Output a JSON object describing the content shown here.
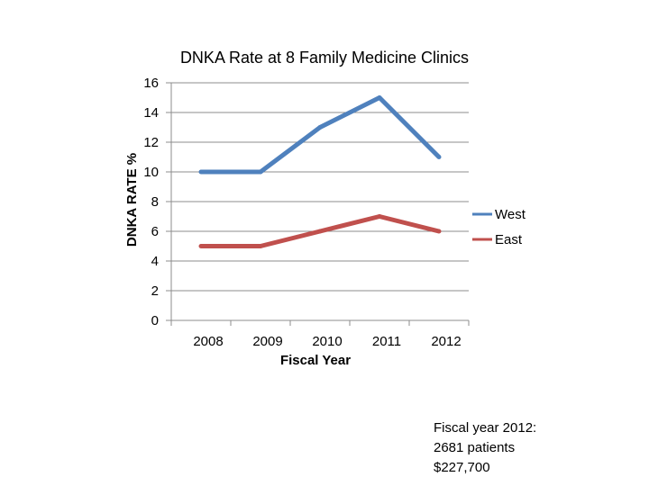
{
  "chart_data": {
    "type": "line",
    "title": "DNKA Rate at 8 Family Medicine  Clinics",
    "xlabel": "Fiscal Year",
    "ylabel": "DNKA  RATE %",
    "categories": [
      "2008",
      "2009",
      "2010",
      "2011",
      "2012"
    ],
    "ylim": [
      0,
      16
    ],
    "yticks": [
      0,
      2,
      4,
      6,
      8,
      10,
      12,
      14,
      16
    ],
    "grid": true,
    "legend_position": "right",
    "series": [
      {
        "name": "West",
        "color": "#4F81BD",
        "values": [
          10,
          10,
          13,
          15,
          11
        ]
      },
      {
        "name": "East",
        "color": "#C0504D",
        "values": [
          5,
          5,
          6,
          7,
          6
        ]
      }
    ]
  },
  "note": {
    "lines": [
      "Fiscal year 2012:",
      "2681 patients",
      "$227,700"
    ]
  }
}
